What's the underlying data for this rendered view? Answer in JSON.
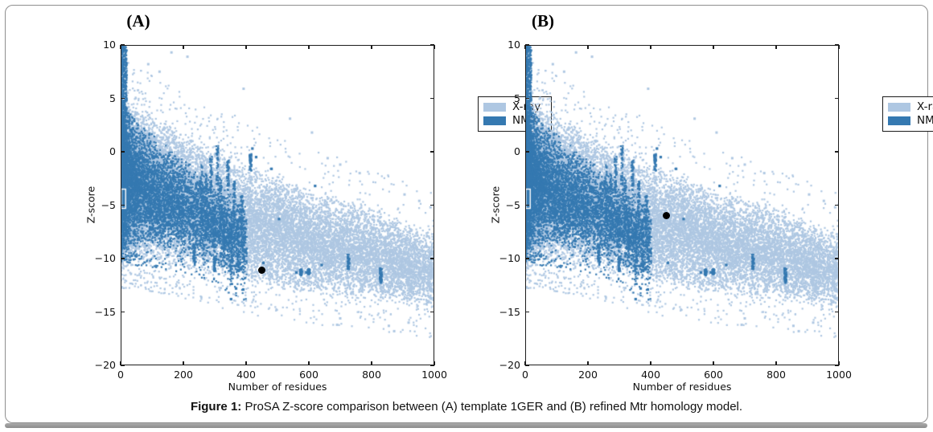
{
  "figure": {
    "caption_label": "Figure 1:",
    "caption_text": " ProSA Z-score comparison between (A) template 1GER and (B) refined Mtr homology model."
  },
  "legend": {
    "items": [
      {
        "label": "X-ray",
        "color": "#aec7e2"
      },
      {
        "label": "NMR",
        "color": "#3579b1"
      }
    ]
  },
  "colors": {
    "xray": "#aec7e2",
    "nmr": "#3579b1",
    "highlight": "#000000",
    "spine": "#1c1c1c",
    "white_box_marker": "#ffffff"
  },
  "chart_data": {
    "type": "scatter",
    "xlabel": "Number of residues",
    "ylabel": "Z-score",
    "xlim": [
      0,
      1000
    ],
    "ylim": [
      -20,
      10
    ],
    "xticks": [
      0,
      200,
      400,
      600,
      800,
      1000
    ],
    "yticks": [
      10,
      5,
      0,
      -5,
      -10,
      -15,
      -20
    ],
    "grid": false,
    "legend_position": "upper right",
    "legend_entries": [
      "X-ray",
      "NMR"
    ],
    "panels": [
      {
        "title": "(A)",
        "highlight_point": {
          "x": 450,
          "z": -11.1,
          "note": "template 1GER query Z-score"
        }
      },
      {
        "title": "(B)",
        "highlight_point": {
          "x": 451,
          "z": -6.0,
          "note": "refined Mtr homology model query Z-score"
        }
      }
    ],
    "background_model": {
      "note": "identical ProSA reference database cloud in both panels",
      "seed": 1337,
      "white_box": {
        "x1": 2,
        "z1": -3.5,
        "x2": 16,
        "z2": -5.3
      },
      "xray": {
        "count": 22000,
        "x_exponent": 1.9,
        "env_n": [
          0,
          100,
          200,
          300,
          400,
          500,
          600,
          700,
          800,
          900,
          1000
        ],
        "env_upper": [
          5.5,
          3.8,
          2.2,
          0.8,
          -0.6,
          -1.8,
          -3.0,
          -4.0,
          -5.0,
          -6.2,
          -7.4
        ],
        "env_lower": [
          -10.3,
          -10.6,
          -11.2,
          -12.0,
          -12.7,
          -13.2,
          -13.6,
          -14.0,
          -14.4,
          -14.8,
          -15.2
        ],
        "outlier_above_rate": 0.011,
        "outlier_below_rate": 0.013,
        "singles": [
          [
            213,
            8.9
          ],
          [
            392,
            5.9
          ],
          [
            88,
            8.2
          ],
          [
            124,
            7.5
          ],
          [
            162,
            9.3
          ],
          [
            540,
            3.1
          ],
          [
            610,
            1.8
          ],
          [
            660,
            -0.6
          ],
          [
            700,
            -1.2
          ],
          [
            762,
            -2.0
          ],
          [
            905,
            -4.0
          ],
          [
            952,
            -4.6
          ],
          [
            988,
            -5.2
          ],
          [
            855,
            -16.3
          ],
          [
            872,
            -16.8
          ],
          [
            690,
            -16.2
          ],
          [
            918,
            -16.0
          ],
          [
            700,
            -15.6
          ]
        ]
      },
      "nmr": {
        "count": 7000,
        "x_scale": 400,
        "x_exponent": 2.1,
        "env_n": [
          0,
          50,
          100,
          150,
          200,
          250,
          300,
          350,
          400
        ],
        "env_upper": [
          5.0,
          3.2,
          1.8,
          0.6,
          -0.5,
          -1.6,
          -2.6,
          -3.6,
          -4.6
        ],
        "env_lower": [
          -8.8,
          -9.2,
          -9.4,
          -9.6,
          -9.8,
          -10.2,
          -11.0,
          -12.0,
          -12.6
        ],
        "outlier_below_rate": 0.02,
        "left_column": {
          "count": 900,
          "x_max": 20,
          "z_top": 10,
          "z_bottom": -9
        },
        "streaks": [
          [
            258,
            -1.2,
            -6.8
          ],
          [
            272,
            -2.0,
            -8.2
          ],
          [
            288,
            -0.4,
            -4.2
          ],
          [
            296,
            -5.2,
            -9.0
          ],
          [
            308,
            0.6,
            -3.2
          ],
          [
            318,
            -2.4,
            -7.4
          ],
          [
            330,
            -4.2,
            -9.2
          ],
          [
            342,
            -0.8,
            -3.6
          ],
          [
            352,
            -6.8,
            -12.4
          ],
          [
            362,
            -2.8,
            -6.2
          ],
          [
            374,
            -7.6,
            -11.2
          ],
          [
            386,
            -4.0,
            -7.6
          ],
          [
            300,
            -9.8,
            -11.2
          ],
          [
            234,
            -8.8,
            -10.6
          ],
          [
            414,
            -0.2,
            -1.8
          ],
          [
            575,
            -11.0,
            -11.6
          ],
          [
            600,
            -11.0,
            -11.5
          ],
          [
            726,
            -9.6,
            -11.0
          ],
          [
            830,
            -10.9,
            -12.3
          ]
        ],
        "singles": [
          [
            420,
            0.3
          ],
          [
            432,
            -0.5
          ],
          [
            481,
            -1.6
          ],
          [
            505,
            -6.3
          ],
          [
            560,
            -11.3
          ],
          [
            592,
            -11.3
          ],
          [
            641,
            -10.6
          ],
          [
            455,
            -10.4
          ],
          [
            352,
            -13.8
          ],
          [
            391,
            -12.9
          ],
          [
            368,
            -12.8
          ],
          [
            620,
            -3.2
          ]
        ]
      }
    }
  }
}
